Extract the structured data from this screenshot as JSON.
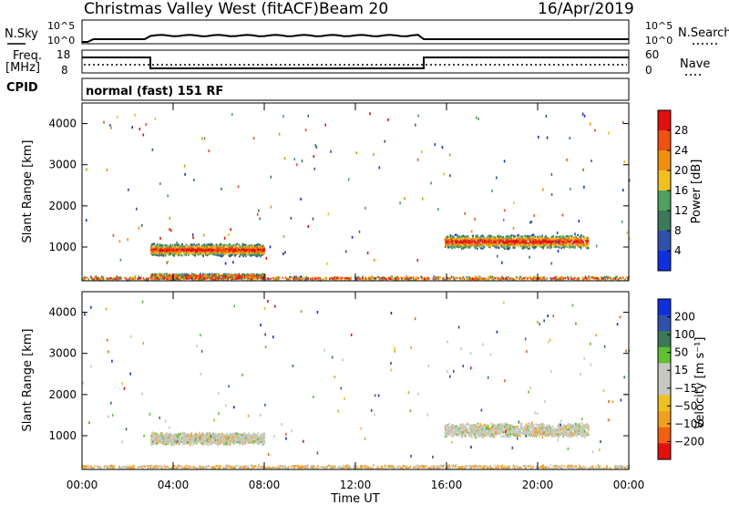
{
  "header": {
    "station": "Christmas Valley West (fitACF)",
    "beam": "Beam 20",
    "date": "16/Apr/2019",
    "mode": "normal (fast) 151 RF"
  },
  "top_panels": {
    "nsky_label": "N.Sky",
    "nsearch_label": "N.Search",
    "freq_label_1": "Freq.",
    "freq_label_2": "[MHz]",
    "nave_label": "Nave",
    "cpid_label": "CPID",
    "noise_ticks": [
      "10^5",
      "10^0"
    ],
    "freq_ticks": [
      "18",
      "8"
    ],
    "nave_ticks": [
      "60",
      "0"
    ]
  },
  "chart_data": [
    {
      "type": "heatmap",
      "name": "power",
      "ylabel": "Slant Range [km]",
      "y_ticks": [
        "4000",
        "3000",
        "2000",
        "1000"
      ],
      "y_tick_values": [
        4000,
        3000,
        2000,
        1000
      ],
      "ylim": [
        180,
        4500
      ],
      "colorbar_label": "Power [dB]",
      "colorbar_ticks": [
        "28",
        "24",
        "20",
        "16",
        "12",
        "8",
        "4"
      ],
      "colorbar_colors": [
        "#1030e0",
        "#3050b0",
        "#3a7a5a",
        "#50a060",
        "#f0c020",
        "#f09010",
        "#f05010",
        "#e01010"
      ],
      "scatter_regions": [
        {
          "t_start": 3.0,
          "t_end": 8.0,
          "r_center": 950,
          "r_half": 160
        },
        {
          "t_start": 15.9,
          "t_end": 22.2,
          "r_center": 1150,
          "r_half": 180
        },
        {
          "t_start": 3.0,
          "t_end": 8.0,
          "r_center": 310,
          "r_half": 60
        },
        {
          "t_start": 0.0,
          "t_end": 24.0,
          "r_center": 260,
          "r_half": 50
        }
      ]
    },
    {
      "type": "heatmap",
      "name": "velocity",
      "ylabel": "Slant Range [km]",
      "y_ticks": [
        "4000",
        "3000",
        "2000",
        "1000"
      ],
      "y_tick_values": [
        4000,
        3000,
        2000,
        1000
      ],
      "ylim": [
        180,
        4500
      ],
      "colorbar_label": "Velocity [m s⁻¹]",
      "colorbar_ticks": [
        "200",
        "100",
        "50",
        "15",
        "−15",
        "−50",
        "−100",
        "−200"
      ],
      "colorbar_colors": [
        "#e01010",
        "#f06010",
        "#f0a020",
        "#f0c020",
        "#c8c8c0",
        "#c8c8c0",
        "#60c030",
        "#3a7a5a",
        "#3050b0",
        "#1030e0"
      ],
      "scatter_regions": [
        {
          "t_start": 3.0,
          "t_end": 8.0,
          "r_center": 950,
          "r_half": 160
        },
        {
          "t_start": 15.9,
          "t_end": 22.2,
          "r_center": 1150,
          "r_half": 180
        },
        {
          "t_start": 0.0,
          "t_end": 24.0,
          "r_center": 260,
          "r_half": 50
        }
      ]
    }
  ],
  "x_axis": {
    "label": "Time UT",
    "ticks": [
      "00:00",
      "04:00",
      "08:00",
      "12:00",
      "16:00",
      "20:00",
      "00:00"
    ],
    "tick_hours": [
      0,
      4,
      8,
      12,
      16,
      20,
      24
    ],
    "xlim": [
      0,
      24
    ]
  }
}
